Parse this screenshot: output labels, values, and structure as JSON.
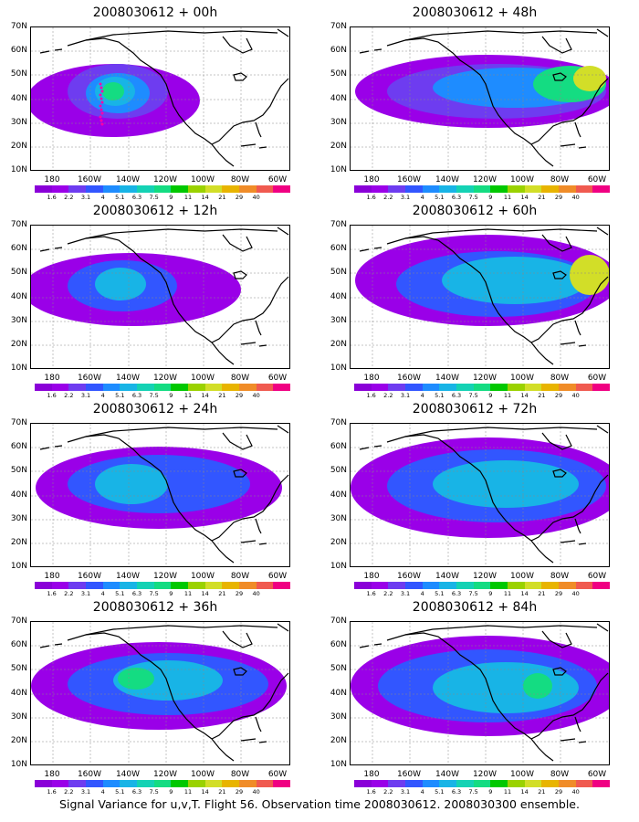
{
  "figure": {
    "caption": "Signal Variance for u,v,T. Flight 56. Observation time 2008030612. 2008030300 ensemble.",
    "lat_ticks": [
      "70N",
      "60N",
      "50N",
      "40N",
      "30N",
      "20N",
      "10N"
    ],
    "lon_ticks": [
      "180",
      "160W",
      "140W",
      "120W",
      "100W",
      "80W",
      "60W"
    ],
    "colorbar": {
      "labels": [
        "1.6",
        "2.2",
        "3.1",
        "4",
        "5.1",
        "6.3",
        "7.5",
        "9",
        "11",
        "14",
        "21",
        "29",
        "40"
      ],
      "colors": [
        "#8a00d8",
        "#9a00e8",
        "#6e3cf0",
        "#3256ff",
        "#1e8cff",
        "#18b4e6",
        "#14d2b4",
        "#14dc82",
        "#00c800",
        "#9ad200",
        "#d2de28",
        "#e8b400",
        "#f08c28",
        "#f05a50",
        "#f00082"
      ]
    },
    "panels": [
      {
        "title": "2008030612 + 00h"
      },
      {
        "title": "2008030612 + 48h"
      },
      {
        "title": "2008030612 + 12h"
      },
      {
        "title": "2008030612 + 60h"
      },
      {
        "title": "2008030612 + 24h"
      },
      {
        "title": "2008030612 + 72h"
      },
      {
        "title": "2008030612 + 36h"
      },
      {
        "title": "2008030612 + 84h"
      }
    ]
  }
}
